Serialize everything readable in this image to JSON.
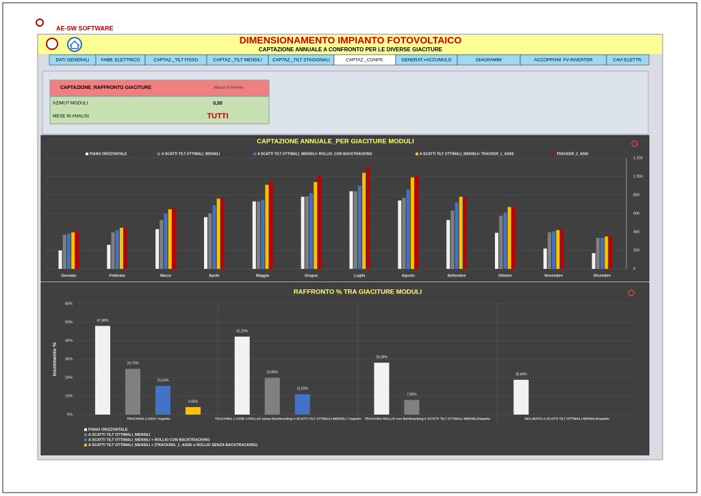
{
  "header": {
    "company": "AE-SW SOFTWARE",
    "title": "DIMENSIONAMENTO IMPIANTO FOTOVOLTAICO",
    "subtitle": "CAPTAZIONE ANNUALE A CONFRONTO PER LE DIVERSE GIACITURE"
  },
  "tabs": [
    "DATI GENERALI",
    "FABB. ELETTRICO",
    "CAPTAZ._TILT FISSO",
    "CAPTAZ._TILT MENSILI",
    "CAPTAZ._TILT STAGIONALI",
    "CAPTAZ._CONFR.",
    "GENERAT.+ACCUMULO",
    "DIAGRAMMI",
    "ACCOPPIAM. FV-INVERTER",
    "CAVI ELETTR."
  ],
  "active_tab": 5,
  "panel": {
    "heading": "CAPTAZIONE_RAFFRONTO GIACITURE",
    "location": "Massa di Somma",
    "rows": [
      [
        "AZIMUT MODULI",
        "0,00"
      ],
      [
        "MESE IN ANALISI",
        "TUTTI"
      ]
    ]
  },
  "chart_data": [
    {
      "type": "bar",
      "title": "CAPTAZIONE ANNUALE_PER GIACITURE MODULI",
      "categories": [
        "Gennaio",
        "Febbraio",
        "Marzo",
        "Aprile",
        "Maggio",
        "Giugno",
        "Luglio",
        "Agosto",
        "Settembre",
        "Ottobre",
        "Novembre",
        "Dicembre"
      ],
      "series": [
        {
          "name": "PIANO ORIZZONTALE",
          "color": "#f2f2f2",
          "values": [
            200,
            260,
            430,
            560,
            730,
            780,
            840,
            740,
            530,
            390,
            220,
            170
          ]
        },
        {
          "name": "A SCATTI TILT OTTIMALI_MENSILI",
          "color": "#808080",
          "values": [
            370,
            395,
            530,
            600,
            730,
            785,
            840,
            770,
            630,
            575,
            395,
            335
          ]
        },
        {
          "name": "A SCATTI TILT OTTIMALI_MENSILI+ ROLLIO_CON BACKTRACKING",
          "color": "#4472c4",
          "values": [
            380,
            420,
            600,
            690,
            745,
            820,
            900,
            860,
            720,
            610,
            405,
            335
          ]
        },
        {
          "name": "A SCATTI TILT OTTIMALI_MENSILI+ TRACKER_1_ASSE",
          "color": "#ffc000",
          "values": [
            395,
            445,
            645,
            760,
            910,
            940,
            1040,
            990,
            780,
            670,
            420,
            350
          ]
        },
        {
          "name": "TRACKER_2_ASSI",
          "color": "#c00000",
          "values": [
            405,
            450,
            645,
            770,
            950,
            1020,
            1110,
            1010,
            780,
            670,
            425,
            355
          ]
        }
      ],
      "ylim": [
        0,
        1200
      ],
      "yticks": [
        0,
        200,
        400,
        600,
        800,
        {
          "value": 1000,
          "label": "1.000"
        },
        {
          "value": 1200,
          "label": "1.200"
        }
      ],
      "grid": true
    },
    {
      "type": "bar",
      "title": "RAFFRONTO % TRA GIACITURE MODULI",
      "y_label": "Incremento %",
      "categories": [
        "TRACKING 2 ASSI / rispetto",
        "TRACKING 1 ASSE o ROLLIO senza Backtracking A SCATTI TILT OTTIMALI MENSILI / rispetto",
        "TRACKING ROLLIO con Backtracking A SCATTI TILT OTTIMALI MENSILI/rispetto",
        "INCLINATO-A SCATTI TILT OTTIMALI MENSILI/rispetto"
      ],
      "series": [
        {
          "name": "PIANO ORIZZONTALE",
          "color": "#f2f2f2",
          "values": [
            47.98,
            42.2,
            28.08,
            18.84
          ],
          "value_labels": [
            "47,98%",
            "42,20%",
            "28,08%",
            "18,84%"
          ]
        },
        {
          "name": "A SCATTI TILT OTTIMALI_MENSILI",
          "color": "#808080",
          "values": [
            24.75,
            19.86,
            7.95,
            null
          ],
          "value_labels": [
            "24,75%",
            "19,86%",
            "7,95%",
            null
          ]
        },
        {
          "name": "A SCATTI TILT OTTIMALI_MENSILI + ROLLIO CON BACKTRACKING",
          "color": "#4472c4",
          "values": [
            15.54,
            11.03,
            null,
            null
          ],
          "value_labels": [
            "15,54%",
            "11,03%",
            null,
            null
          ]
        },
        {
          "name": "A SCATTI TILT OTTIMALI_MENSILI + (TRACKING_1_ASSE o ROLLIO SENZA BACKTRACKING)",
          "color": "#ffc000",
          "values": [
            4.06,
            null,
            null,
            null
          ],
          "value_labels": [
            "4,06%",
            null,
            null,
            null
          ]
        }
      ],
      "ylim": [
        0,
        60
      ],
      "yticks": [
        {
          "value": 0,
          "label": "0%"
        },
        {
          "value": 10,
          "label": "10%"
        },
        {
          "value": 20,
          "label": "20%"
        },
        {
          "value": 30,
          "label": "30%"
        },
        {
          "value": 40,
          "label": "40%"
        },
        {
          "value": 50,
          "label": "50%"
        },
        {
          "value": 60,
          "label": "60%"
        }
      ],
      "grid": true
    }
  ]
}
